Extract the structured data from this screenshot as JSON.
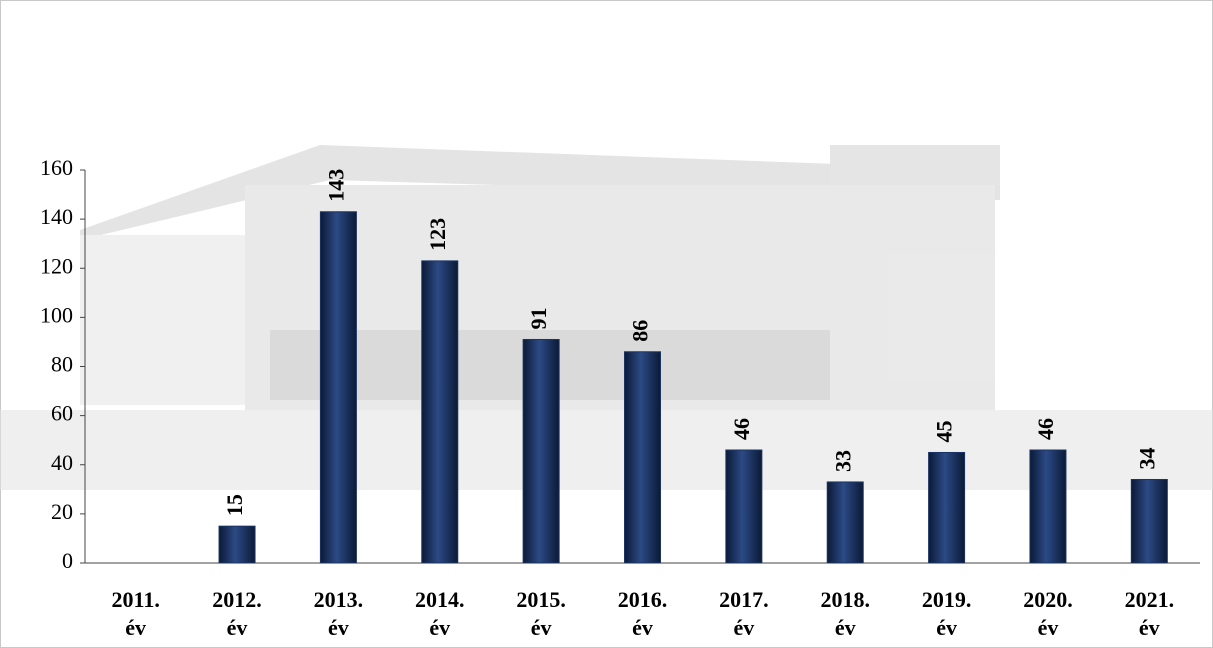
{
  "chart_data": {
    "type": "bar",
    "categories": [
      "2011. év",
      "2012. év",
      "2013. év",
      "2014. év",
      "2015. év",
      "2016. év",
      "2017. év",
      "2018. év",
      "2019. év",
      "2020. év",
      "2021. év"
    ],
    "values": [
      null,
      15,
      143,
      123,
      91,
      86,
      46,
      33,
      45,
      46,
      34
    ],
    "color": "#1b3464",
    "ylim": [
      0,
      160
    ],
    "yticks": [
      0,
      20,
      40,
      60,
      80,
      100,
      120,
      140,
      160
    ]
  }
}
